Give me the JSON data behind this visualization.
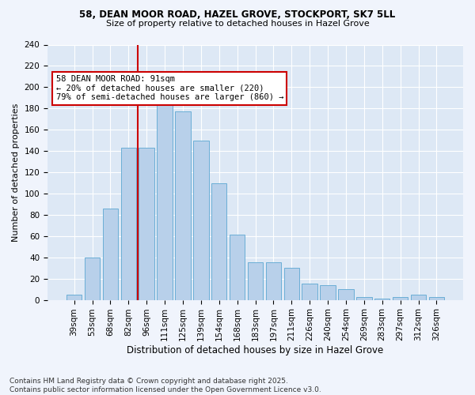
{
  "title1": "58, DEAN MOOR ROAD, HAZEL GROVE, STOCKPORT, SK7 5LL",
  "title2": "Size of property relative to detached houses in Hazel Grove",
  "xlabel": "Distribution of detached houses by size in Hazel Grove",
  "ylabel": "Number of detached properties",
  "categories": [
    "39sqm",
    "53sqm",
    "68sqm",
    "82sqm",
    "96sqm",
    "111sqm",
    "125sqm",
    "139sqm",
    "154sqm",
    "168sqm",
    "183sqm",
    "197sqm",
    "211sqm",
    "226sqm",
    "240sqm",
    "254sqm",
    "269sqm",
    "283sqm",
    "297sqm",
    "312sqm",
    "326sqm"
  ],
  "values": [
    5,
    40,
    86,
    143,
    143,
    185,
    177,
    150,
    110,
    61,
    35,
    35,
    30,
    15,
    14,
    10,
    3,
    1,
    3,
    5,
    3
  ],
  "bar_color": "#b8d0ea",
  "bar_edge_color": "#6baed6",
  "vline_x_index": 3.5,
  "annotation_line1": "58 DEAN MOOR ROAD: 91sqm",
  "annotation_line2": "← 20% of detached houses are smaller (220)",
  "annotation_line3": "79% of semi-detached houses are larger (860) →",
  "annotation_box_color": "#ffffff",
  "annotation_box_edge": "#cc0000",
  "vline_color": "#cc0000",
  "footer": "Contains HM Land Registry data © Crown copyright and database right 2025.\nContains public sector information licensed under the Open Government Licence v3.0.",
  "ylim": [
    0,
    240
  ],
  "yticks": [
    0,
    20,
    40,
    60,
    80,
    100,
    120,
    140,
    160,
    180,
    200,
    220,
    240
  ],
  "fig_bg": "#f0f4fc",
  "plot_bg": "#dde8f5",
  "grid_color": "#ffffff",
  "title1_fontsize": 8.5,
  "title2_fontsize": 8.0,
  "ylabel_fontsize": 8.0,
  "xlabel_fontsize": 8.5,
  "tick_fontsize": 7.5,
  "annot_fontsize": 7.5,
  "footer_fontsize": 6.5
}
